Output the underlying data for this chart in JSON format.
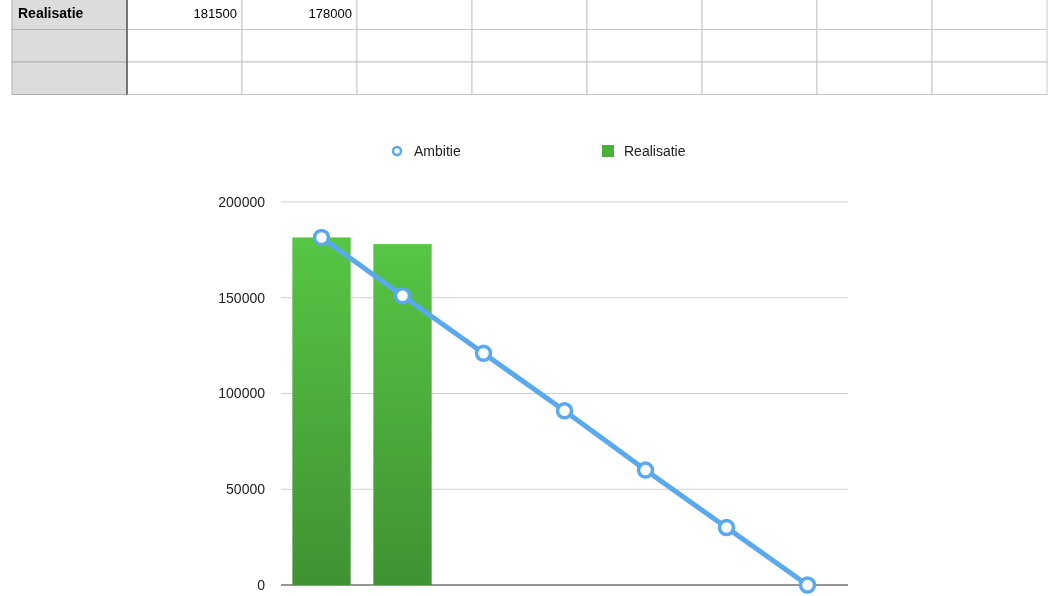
{
  "chart_data": {
    "type": "bar",
    "categories": [
      null,
      null,
      null,
      null,
      null,
      null,
      null
    ],
    "series": [
      {
        "name": "Ambitie",
        "type": "line",
        "color": "#5aa9ef",
        "marker": "circle",
        "values": [
          181500,
          151000,
          121000,
          91000,
          60000,
          30000,
          0
        ]
      },
      {
        "name": "Realisatie",
        "color": "#4cae3c",
        "values": [
          181500,
          178000,
          null,
          null,
          null,
          null,
          null
        ]
      }
    ],
    "annotations": [
      "181500",
      "178000"
    ],
    "ylim": [
      0,
      200000
    ],
    "yticks": [
      0,
      50000,
      100000,
      150000,
      200000
    ],
    "grid": "y",
    "legend": "top"
  }
}
